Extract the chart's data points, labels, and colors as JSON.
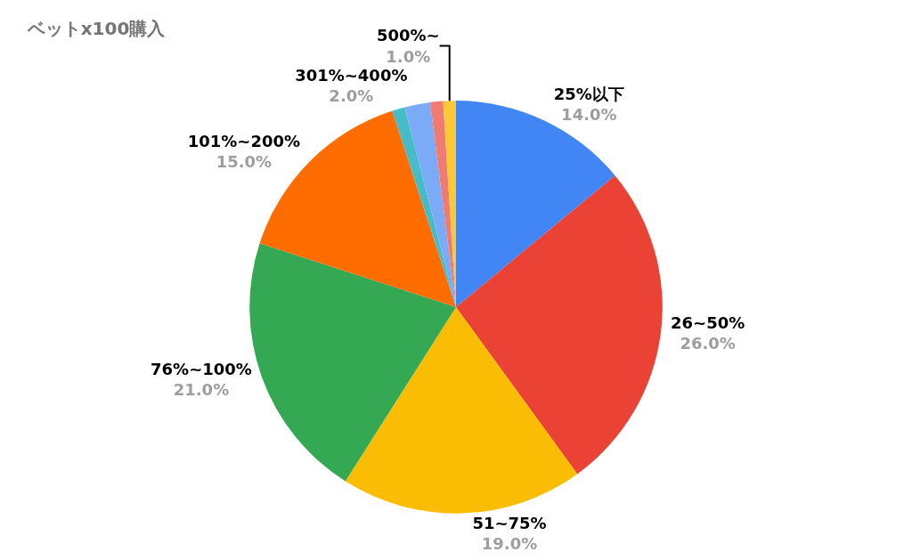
{
  "chart_data": {
    "type": "pie",
    "title": "ベットx100購入",
    "categories": [
      "25%以下",
      "26~50%",
      "51~75%",
      "76%~100%",
      "101%~200%",
      null,
      "301%~400%",
      null,
      "500%~"
    ],
    "values": [
      14,
      26,
      19,
      21,
      15,
      1,
      2,
      1,
      1
    ],
    "value_labels": [
      "14.0%",
      "26.0%",
      "19.0%",
      "21.0%",
      "15.0%",
      null,
      "2.0%",
      null,
      "1.0%"
    ],
    "colors": [
      "#4285f4",
      "#ea4335",
      "#fbbc04",
      "#34a853",
      "#ff6d01",
      "#46bdc6",
      "#7baaf7",
      "#f07b72",
      "#fcc934"
    ],
    "legend": false
  }
}
